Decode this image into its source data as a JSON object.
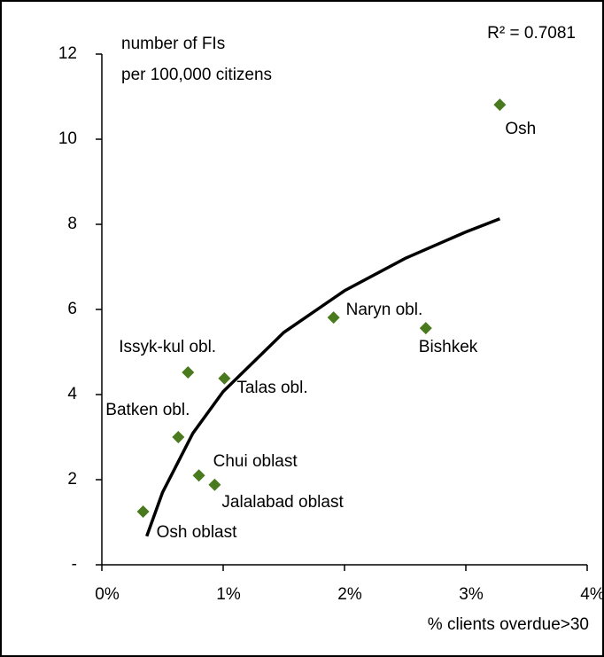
{
  "chart_data": {
    "type": "scatter",
    "annotations": [
      "number of FIs",
      "per 100,000 citizens"
    ],
    "r_squared_label": "R² = 0.7081",
    "x_label": "% clients overdue>30",
    "color": "#4a7a1e",
    "series": [
      {
        "names": [
          "Osh",
          "Naryn obl.",
          "Bishkek",
          "Issyk-kul obl.",
          "Talas obl.",
          "Batken obl.",
          "Chui oblast",
          "Jalalabad oblast",
          "Osh oblast"
        ],
        "x": [
          3.28,
          1.91,
          2.67,
          0.71,
          1.01,
          0.63,
          0.8,
          0.93,
          0.34
        ],
        "values": [
          10.81,
          5.81,
          5.56,
          4.52,
          4.38,
          3.0,
          2.1,
          1.88,
          1.25
        ]
      }
    ],
    "trendline": {
      "type": "logarithmic",
      "color": "#000000",
      "x": [
        0.37,
        0.5,
        0.75,
        1,
        1.5,
        2,
        2.5,
        3,
        3.28
      ],
      "values": [
        0.67,
        1.7,
        3.09,
        4.07,
        5.46,
        6.44,
        7.2,
        7.82,
        8.13
      ]
    },
    "xlim": [
      0,
      4
    ],
    "xticks": [
      {
        "value": 0,
        "label": "0%"
      },
      {
        "value": 1,
        "label": "1%"
      },
      {
        "value": 2,
        "label": "2%"
      },
      {
        "value": 3,
        "label": "3%"
      },
      {
        "value": 4,
        "label": "4%"
      }
    ],
    "ylim": [
      0,
      12
    ],
    "yticks": [
      {
        "value": 0,
        "label": "-"
      },
      2,
      4,
      6,
      8,
      10,
      12
    ]
  }
}
